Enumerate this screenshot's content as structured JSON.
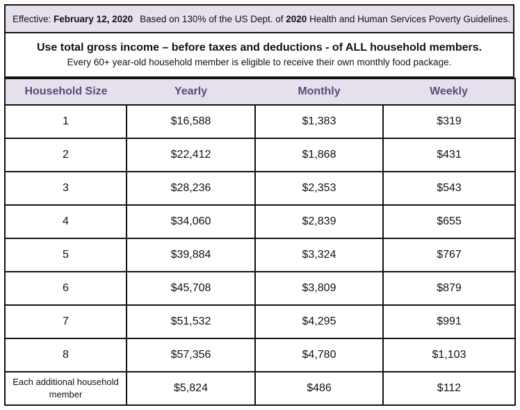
{
  "banner": {
    "effective_label": "Effective:",
    "effective_date": "February 12, 2020",
    "based_prefix": "Based on 130% of the US Dept. of",
    "year": "2020",
    "based_suffix": "Health and Human Services Poverty Guidelines."
  },
  "notice": {
    "main": "Use total gross income – before taxes and deductions - of ALL household members.",
    "sub": "Every 60+ year-old household member is eligible to receive their own monthly food package."
  },
  "table": {
    "headers": [
      "Household Size",
      "Yearly",
      "Monthly",
      "Weekly"
    ],
    "rows": [
      [
        "1",
        "$16,588",
        "$1,383",
        "$319"
      ],
      [
        "2",
        "$22,412",
        "$1,868",
        "$431"
      ],
      [
        "3",
        "$28,236",
        "$2,353",
        "$543"
      ],
      [
        "4",
        "$34,060",
        "$2,839",
        "$655"
      ],
      [
        "5",
        "$39,884",
        "$3,324",
        "$767"
      ],
      [
        "6",
        "$45,708",
        "$3,809",
        "$879"
      ],
      [
        "7",
        "$51,532",
        "$4,295",
        "$991"
      ],
      [
        "8",
        "$57,356",
        "$4,780",
        "$1,103"
      ],
      [
        "Each additional household member",
        "$5,824",
        "$486",
        "$112"
      ]
    ]
  },
  "colors": {
    "header_bg": "#e6e0ed",
    "header_text": "#5a4b7a",
    "border": "#111111"
  }
}
